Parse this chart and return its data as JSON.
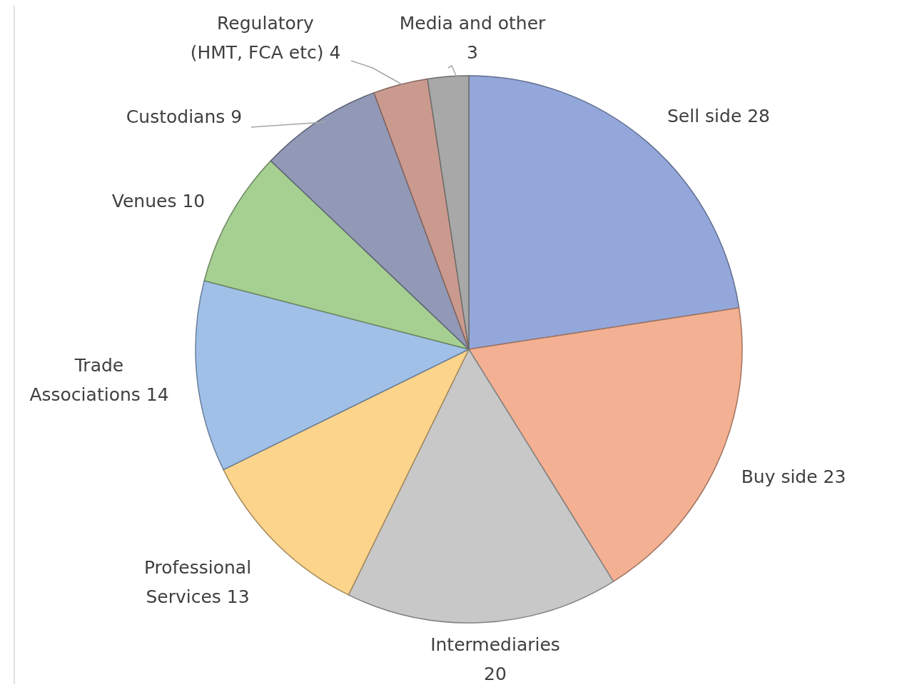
{
  "chart_data": {
    "type": "pie",
    "categories": [
      "Sell side",
      "Buy side",
      "Intermediaries",
      "Professional Services",
      "Trade Associations",
      "Venues",
      "Custodians",
      "Regulatory (HMT, FCA etc)",
      "Media and other"
    ],
    "values": [
      28,
      23,
      20,
      13,
      14,
      10,
      9,
      4,
      3
    ],
    "colors": [
      "#94a7da",
      "#f4b092",
      "#c8c8c8",
      "#fdd48c",
      "#a0c0e8",
      "#a6cf92",
      "#9299b6",
      "#cb9a8e",
      "#a8a8a8"
    ],
    "data_labels": true
  }
}
